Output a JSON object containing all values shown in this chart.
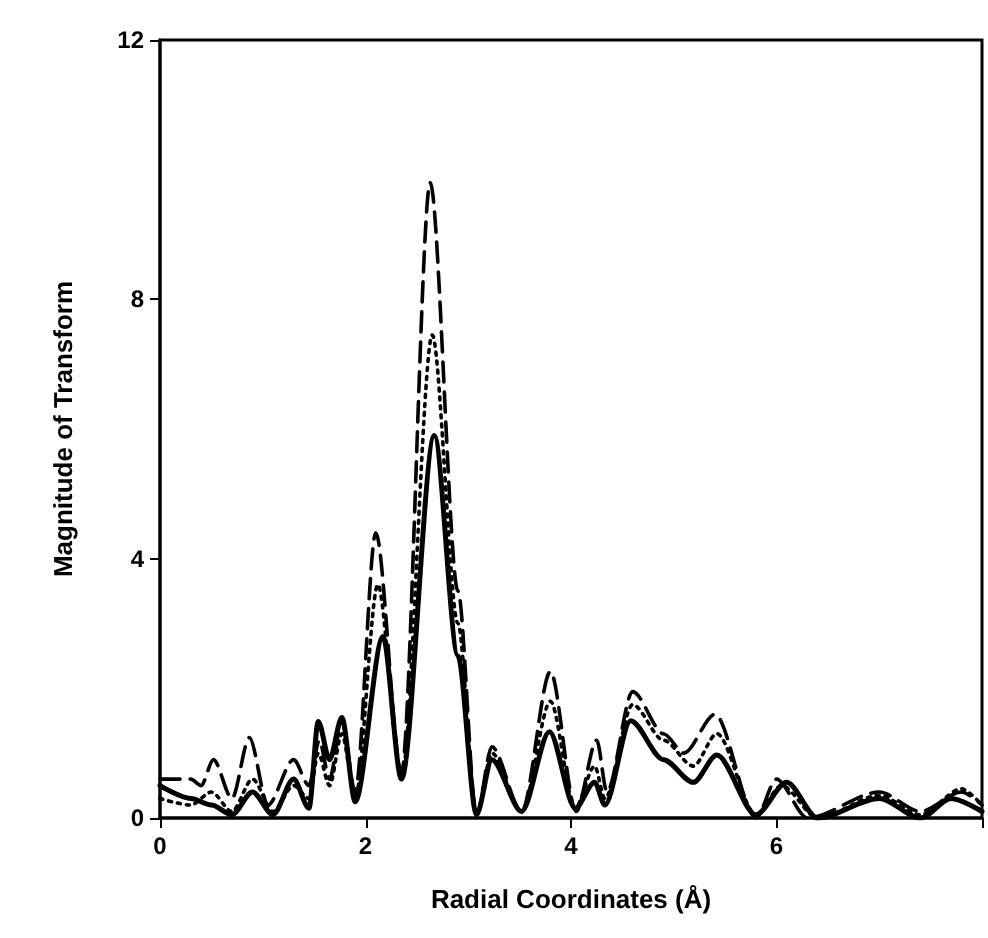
{
  "chart_data": {
    "type": "line",
    "xlabel": "Radial Coordinates (Å)",
    "ylabel": "Magnitude of Transform",
    "xlim": [
      0,
      8
    ],
    "xticks": [
      0,
      2,
      4,
      6,
      {
        "value": 8,
        "label": null
      }
    ],
    "ylim": [
      0,
      12
    ],
    "yticks": [
      0,
      4,
      8,
      12
    ],
    "grid": false,
    "marker": "none",
    "series": [
      {
        "color": "#000000",
        "line_style": "solid",
        "x": [
          0,
          0.3,
          0.5,
          0.7,
          0.9,
          1.1,
          1.3,
          1.45,
          1.54,
          1.65,
          1.77,
          1.9,
          2.17,
          2.35,
          2.67,
          2.9,
          3.08,
          3.23,
          3.52,
          3.79,
          4.04,
          4.23,
          4.33,
          4.58,
          4.9,
          5.19,
          5.42,
          5.8,
          6.1,
          6.4,
          7.0,
          7.4,
          7.7,
          8
        ],
        "values": [
          0.5,
          0.3,
          0.2,
          0.05,
          0.4,
          0.05,
          0.6,
          0.15,
          1.49,
          0.9,
          1.55,
          0.25,
          2.8,
          0.6,
          5.9,
          2.5,
          0.05,
          0.9,
          0.1,
          1.33,
          0.15,
          0.55,
          0.2,
          1.5,
          0.9,
          0.55,
          0.97,
          0.05,
          0.55,
          0,
          0.3,
          0,
          0.3,
          0.1
        ]
      },
      {
        "color": "#000000",
        "line_style": "dotted",
        "x": [
          0,
          0.3,
          0.5,
          0.7,
          0.9,
          1.1,
          1.3,
          1.45,
          1.54,
          1.65,
          1.77,
          1.9,
          2.12,
          2.35,
          2.65,
          2.9,
          3.08,
          3.23,
          3.52,
          3.8,
          4.04,
          4.23,
          4.33,
          4.6,
          4.9,
          5.19,
          5.42,
          5.8,
          6.05,
          6.4,
          7.0,
          7.4,
          7.8,
          8
        ],
        "values": [
          0.3,
          0.2,
          0.4,
          0.1,
          0.6,
          0.1,
          0.5,
          0.3,
          1.0,
          0.5,
          1.3,
          0.3,
          3.6,
          0.6,
          7.45,
          3.0,
          0.05,
          1.0,
          0.1,
          1.8,
          0.15,
          0.8,
          0.3,
          1.75,
          1.2,
          0.8,
          1.3,
          0.05,
          0.5,
          0,
          0.35,
          0.05,
          0.45,
          0.2
        ]
      },
      {
        "color": "#000000",
        "line_style": "dashed",
        "x": [
          0,
          0.3,
          0.4,
          0.52,
          0.7,
          0.87,
          1.05,
          1.3,
          1.45,
          1.55,
          1.65,
          1.77,
          1.9,
          2.1,
          2.35,
          2.63,
          2.9,
          3.08,
          3.23,
          3.52,
          3.8,
          4.05,
          4.25,
          4.35,
          4.6,
          4.9,
          5.1,
          5.4,
          5.8,
          6.0,
          6.3,
          7.0,
          7.4,
          7.8,
          8
        ],
        "values": [
          0.6,
          0.6,
          0.5,
          0.9,
          0.3,
          1.24,
          0.2,
          0.9,
          0.5,
          1.2,
          0.6,
          1.5,
          0.4,
          4.4,
          0.7,
          9.8,
          3.5,
          0.05,
          1.1,
          0.1,
          2.26,
          0.1,
          1.2,
          0.4,
          1.95,
          1.3,
          1.0,
          1.6,
          0,
          0.6,
          0,
          0.4,
          0.1,
          0.4,
          0.2
        ]
      }
    ]
  }
}
